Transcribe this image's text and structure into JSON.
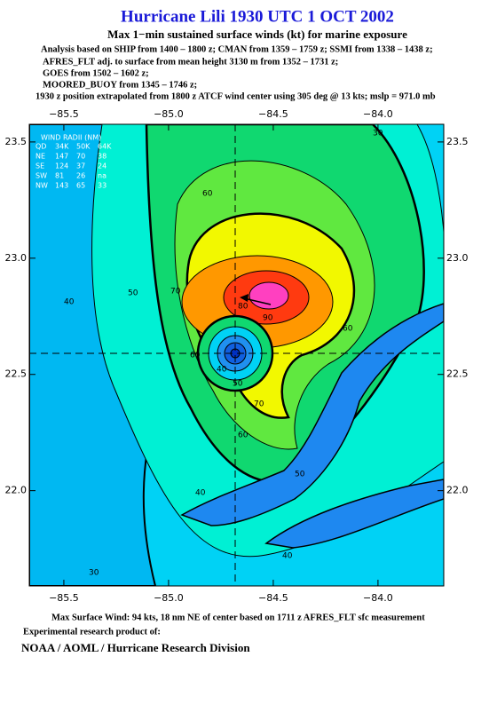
{
  "header": {
    "title": "Hurricane Lili 1930 UTC 1 OCT 2002",
    "subtitle": "Max 1−min sustained surface winds (kt) for marine exposure",
    "analysis": [
      "Analysis based on  SHIP from 1400 – 1800 z;  CMAN from 1359 – 1759 z;  SSMI from 1338 – 1438 z;",
      "AFRES_FLT adj. to surface from mean height 3130 m from 1352 – 1731 z;",
      "GOES from 1502 – 1602 z;",
      "MOORED_BUOY from 1345 – 1746 z;"
    ],
    "position_note": "1930 z position extrapolated from 1800 z ATCF wind center using 305 deg @ 13 kts; mslp = 971.0 mb"
  },
  "map": {
    "xlim": [
      -85.665,
      -83.686
    ],
    "ylim": [
      21.59,
      23.576
    ],
    "xticks": [
      {
        "value": -85.5,
        "label": "−85.5"
      },
      {
        "value": -85.0,
        "label": "−85.0"
      },
      {
        "value": -84.5,
        "label": "−84.5"
      },
      {
        "value": -84.0,
        "label": "−84.0"
      }
    ],
    "yticks": [
      {
        "value": 23.5,
        "label": "23.5"
      },
      {
        "value": 23.0,
        "label": "23.0"
      },
      {
        "value": 22.5,
        "label": "22.5"
      },
      {
        "value": 22.0,
        "label": "22.0"
      }
    ],
    "contour_labels": [
      "30",
      "40",
      "50",
      "60",
      "70",
      "80",
      "90",
      "40",
      "50",
      "60",
      "60",
      "70",
      "60",
      "50",
      "40",
      "40",
      "30"
    ],
    "wind_radii": {
      "title": "WIND RADII (NM)",
      "rows": [
        [
          "QD",
          "34K",
          "50K",
          "64K"
        ],
        [
          "NE",
          "147",
          "70",
          "38"
        ],
        [
          "SE",
          "124",
          "37",
          "24"
        ],
        [
          "SW",
          "81",
          "26",
          "na"
        ],
        [
          "NW",
          "143",
          "65",
          "33"
        ]
      ]
    }
  },
  "footer": {
    "max_wind": "Max Surface Wind: 94 kts, 18 nm NE of center based on 1711 z AFRES_FLT sfc measurement",
    "product": "Experimental research product of:",
    "org": "NOAA / AOML / Hurricane Research Division"
  }
}
